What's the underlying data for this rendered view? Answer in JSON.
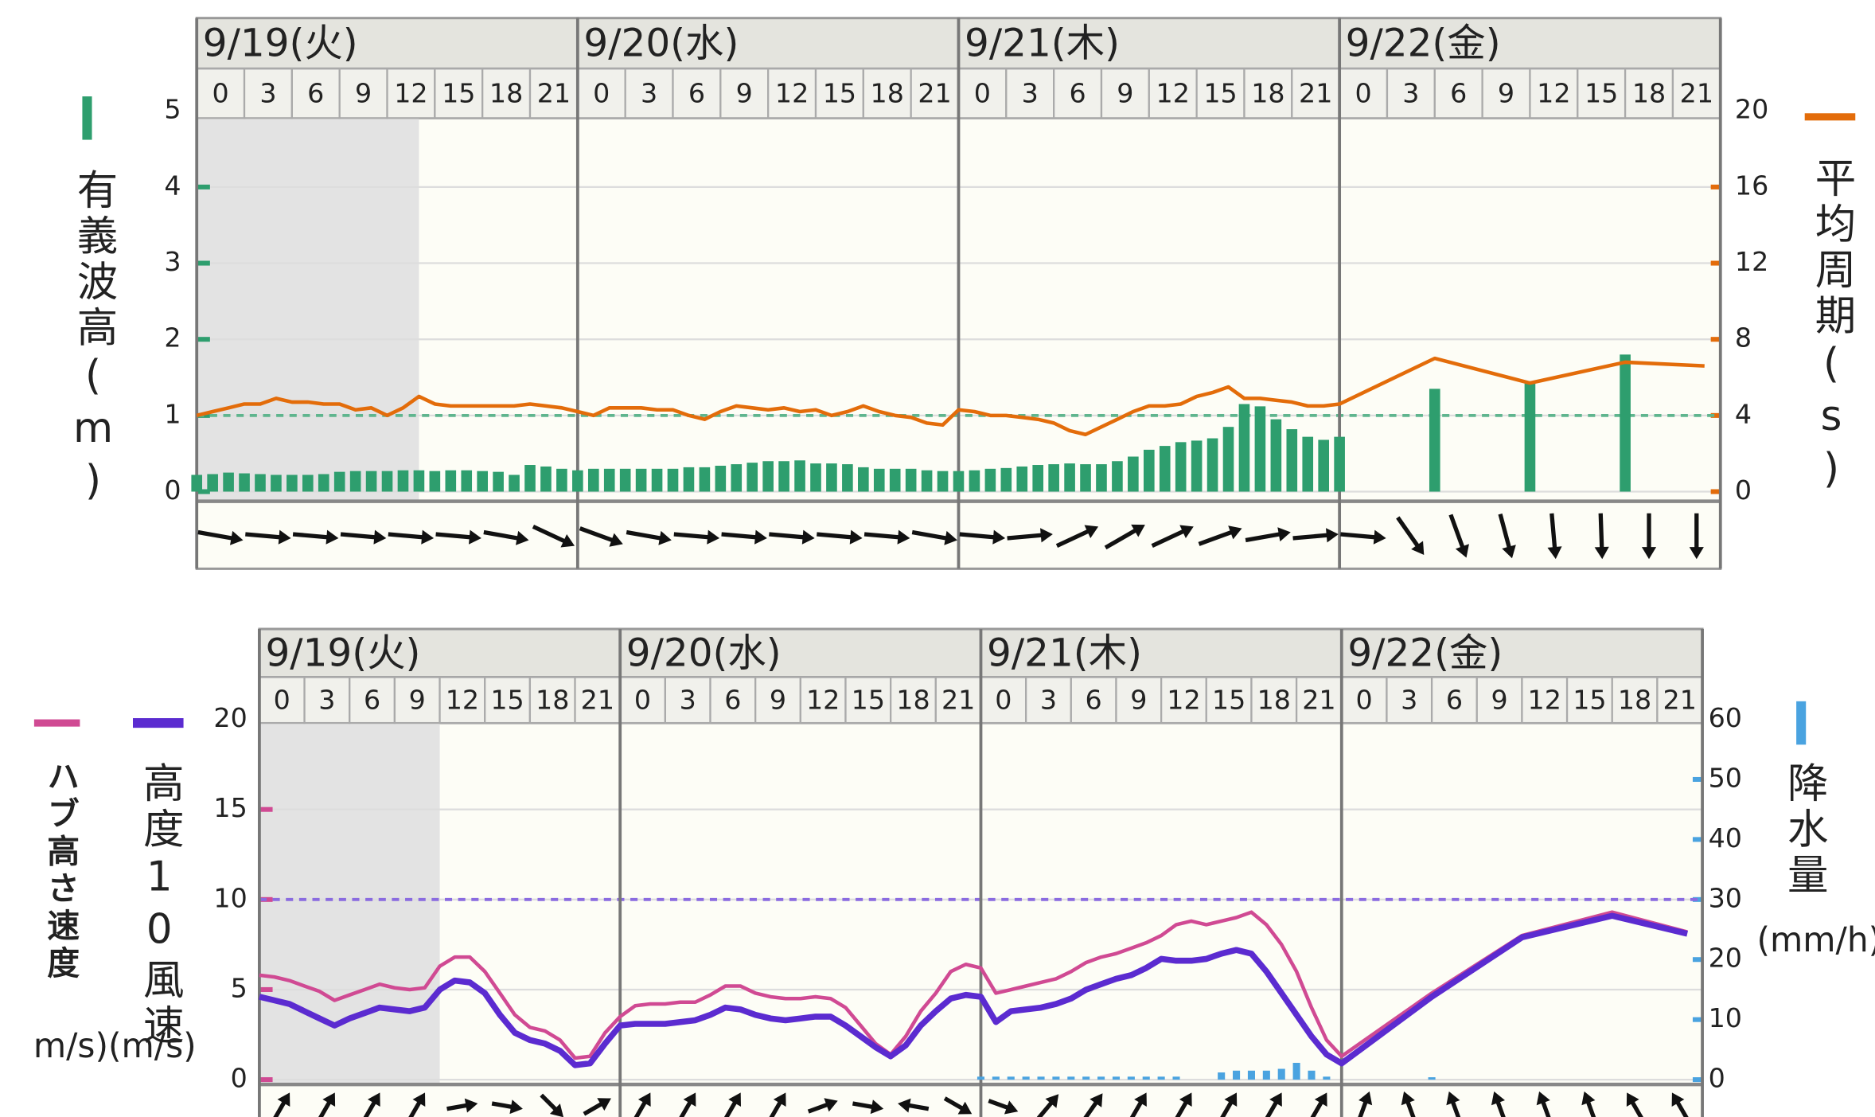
{
  "chart_data": [
    {
      "type": "bar-line",
      "days": [
        "9/19(火)",
        "9/20(水)",
        "9/21(木)",
        "9/22(金)"
      ],
      "hours": [
        0,
        3,
        6,
        9,
        12,
        15,
        18,
        21
      ],
      "x": [
        0,
        1,
        2,
        3,
        4,
        5,
        6,
        7,
        8,
        9,
        10,
        11,
        12,
        13,
        14,
        15,
        16,
        17,
        18,
        19,
        20,
        21,
        22,
        23,
        24,
        25,
        26,
        27,
        28,
        29,
        30,
        31,
        32,
        33,
        34,
        35,
        36,
        37,
        38,
        39,
        40,
        41,
        42,
        43,
        44,
        45,
        46,
        47,
        48,
        49,
        50,
        51,
        52,
        53,
        54,
        55,
        56,
        57,
        58,
        59,
        60,
        61,
        62,
        63,
        64,
        65,
        66,
        67,
        68,
        69,
        70,
        71,
        72,
        78,
        84,
        90,
        95
      ],
      "xlim": [
        0,
        96
      ],
      "ylim": [
        0,
        5
      ],
      "yticks": [
        0,
        1,
        2,
        3,
        4,
        5
      ],
      "y2lim": [
        0,
        20
      ],
      "y2ticks": [
        0,
        4,
        8,
        12,
        16,
        20
      ],
      "grid": true,
      "reference_line": 1,
      "shaded_until": 14,
      "series": [
        {
          "name": "有義波高(m)",
          "kind": "bar",
          "color": "#2e9e6e",
          "values": [
            0.22,
            0.23,
            0.25,
            0.24,
            0.23,
            0.22,
            0.22,
            0.22,
            0.23,
            0.26,
            0.27,
            0.27,
            0.27,
            0.28,
            0.28,
            0.27,
            0.28,
            0.28,
            0.27,
            0.26,
            0.22,
            0.35,
            0.33,
            0.3,
            0.28,
            0.3,
            0.3,
            0.3,
            0.3,
            0.3,
            0.3,
            0.32,
            0.32,
            0.34,
            0.36,
            0.38,
            0.4,
            0.4,
            0.41,
            0.37,
            0.37,
            0.36,
            0.32,
            0.3,
            0.3,
            0.3,
            0.28,
            0.27,
            0.27,
            0.28,
            0.3,
            0.31,
            0.33,
            0.35,
            0.36,
            0.37,
            0.36,
            0.36,
            0.4,
            0.46,
            0.55,
            0.6,
            0.65,
            0.67,
            0.7,
            0.85,
            1.15,
            1.12,
            0.95,
            0.82,
            0.72,
            0.68,
            0.72,
            1.35,
            1.45,
            1.8,
            null
          ]
        },
        {
          "name": "平均周期(s)",
          "kind": "line",
          "axis": "y2",
          "color": "#e36c0a",
          "values": [
            4.0,
            4.2,
            4.4,
            4.6,
            4.6,
            4.9,
            4.7,
            4.7,
            4.6,
            4.6,
            4.3,
            4.4,
            4.0,
            4.4,
            5.0,
            4.6,
            4.5,
            4.5,
            4.5,
            4.5,
            4.5,
            4.6,
            4.5,
            4.4,
            4.2,
            4.0,
            4.4,
            4.4,
            4.4,
            4.3,
            4.3,
            4.0,
            3.8,
            4.2,
            4.5,
            4.4,
            4.3,
            4.4,
            4.2,
            4.3,
            4.0,
            4.2,
            4.5,
            4.2,
            4.0,
            3.9,
            3.6,
            3.5,
            4.3,
            4.2,
            4.0,
            4.0,
            3.9,
            3.8,
            3.6,
            3.2,
            3.0,
            3.4,
            3.8,
            4.2,
            4.5,
            4.5,
            4.6,
            5.0,
            5.2,
            5.5,
            4.9,
            4.9,
            4.8,
            4.7,
            4.5,
            4.5,
            4.6,
            7.0,
            5.7,
            6.8,
            6.6
          ]
        }
      ],
      "arrows": {
        "values": [
          100,
          95,
          95,
          95,
          95,
          95,
          100,
          115,
          110,
          100,
          95,
          95,
          95,
          95,
          95,
          100,
          95,
          85,
          65,
          60,
          65,
          70,
          80,
          85,
          95,
          145,
          160,
          165,
          175,
          178,
          180,
          180
        ]
      }
    },
    {
      "type": "bar-line",
      "days": [
        "9/19(火)",
        "9/20(水)",
        "9/21(木)",
        "9/22(金)"
      ],
      "hours": [
        0,
        3,
        6,
        9,
        12,
        15,
        18,
        21
      ],
      "x": [
        0,
        1,
        2,
        3,
        4,
        5,
        6,
        7,
        8,
        9,
        10,
        11,
        12,
        13,
        14,
        15,
        16,
        17,
        18,
        19,
        20,
        21,
        22,
        23,
        24,
        25,
        26,
        27,
        28,
        29,
        30,
        31,
        32,
        33,
        34,
        35,
        36,
        37,
        38,
        39,
        40,
        41,
        42,
        43,
        44,
        45,
        46,
        47,
        48,
        49,
        50,
        51,
        52,
        53,
        54,
        55,
        56,
        57,
        58,
        59,
        60,
        61,
        62,
        63,
        64,
        65,
        66,
        67,
        68,
        69,
        70,
        71,
        72,
        78,
        84,
        90,
        95
      ],
      "xlim": [
        0,
        96
      ],
      "ylim": [
        0,
        20
      ],
      "yticks": [
        0,
        5,
        10,
        15,
        20
      ],
      "y2lim": [
        0,
        60
      ],
      "y2ticks": [
        0,
        10,
        20,
        30,
        40,
        50,
        60
      ],
      "grid": true,
      "reference_line": 10,
      "shaded_until": 12,
      "left_unit": "m/s)(m/s)",
      "right_unit": "(mm/h)",
      "series": [
        {
          "name": "降水量",
          "kind": "bar",
          "axis": "y2",
          "color": "#4aa3e0",
          "values": [
            0,
            0,
            0,
            0,
            0,
            0,
            0,
            0,
            0,
            0,
            0,
            0,
            0,
            0,
            0,
            0,
            0,
            0,
            0,
            0,
            0,
            0,
            0,
            0,
            0,
            0,
            0,
            0,
            0,
            0,
            0,
            0,
            0,
            0,
            0,
            0,
            0,
            0,
            0,
            0,
            0,
            0,
            0,
            0,
            0,
            0,
            0,
            0,
            0.5,
            0.5,
            0.5,
            0.5,
            0.5,
            0.5,
            0.5,
            0.5,
            0.5,
            0.5,
            0.5,
            0.5,
            0.5,
            0.5,
            0,
            0,
            1.2,
            1.5,
            1.5,
            1.5,
            1.8,
            2.8,
            1.5,
            0.5,
            0,
            0.4,
            0,
            0,
            0
          ]
        },
        {
          "name": "ハブ高さ速度",
          "kind": "line",
          "color": "#d04a93",
          "values": [
            5.8,
            5.7,
            5.5,
            5.2,
            4.9,
            4.4,
            4.7,
            5.0,
            5.3,
            5.1,
            5.0,
            5.1,
            6.3,
            6.8,
            6.8,
            6.0,
            4.8,
            3.6,
            2.9,
            2.7,
            2.2,
            1.2,
            1.3,
            2.6,
            3.5,
            4.1,
            4.2,
            4.2,
            4.3,
            4.3,
            4.7,
            5.2,
            5.2,
            4.8,
            4.6,
            4.5,
            4.5,
            4.6,
            4.5,
            4.0,
            3.0,
            2.0,
            1.4,
            2.4,
            3.8,
            4.8,
            6.0,
            6.4,
            6.2,
            4.8,
            5.0,
            5.2,
            5.4,
            5.6,
            6.0,
            6.5,
            6.8,
            7.0,
            7.3,
            7.6,
            8.0,
            8.6,
            8.8,
            8.6,
            8.8,
            9.0,
            9.3,
            8.6,
            7.5,
            6.0,
            4.0,
            2.2,
            1.3,
            4.8,
            8.0,
            9.3,
            8.2
          ]
        },
        {
          "name": "高度10風速",
          "kind": "line",
          "color": "#5b2bd0",
          "values": [
            4.6,
            4.4,
            4.2,
            3.8,
            3.4,
            3.0,
            3.4,
            3.7,
            4.0,
            3.9,
            3.8,
            4.0,
            5.0,
            5.5,
            5.4,
            4.8,
            3.6,
            2.6,
            2.2,
            2.0,
            1.6,
            0.8,
            0.9,
            2.0,
            3.0,
            3.1,
            3.1,
            3.1,
            3.2,
            3.3,
            3.6,
            4.0,
            3.9,
            3.6,
            3.4,
            3.3,
            3.4,
            3.5,
            3.5,
            3.0,
            2.4,
            1.8,
            1.3,
            1.9,
            3.0,
            3.8,
            4.5,
            4.7,
            4.6,
            3.2,
            3.8,
            3.9,
            4.0,
            4.2,
            4.5,
            5.0,
            5.3,
            5.6,
            5.8,
            6.2,
            6.7,
            6.6,
            6.6,
            6.7,
            7.0,
            7.2,
            7.0,
            6.0,
            4.8,
            3.6,
            2.4,
            1.4,
            0.9,
            4.6,
            7.9,
            9.1,
            8.1
          ]
        }
      ],
      "arrows": {
        "values": [
          30,
          30,
          30,
          30,
          80,
          100,
          135,
          60,
          30,
          30,
          30,
          30,
          70,
          100,
          280,
          120,
          110,
          40,
          35,
          30,
          30,
          30,
          30,
          30,
          20,
          340,
          340,
          340,
          340,
          340,
          330,
          330
        ]
      }
    }
  ]
}
